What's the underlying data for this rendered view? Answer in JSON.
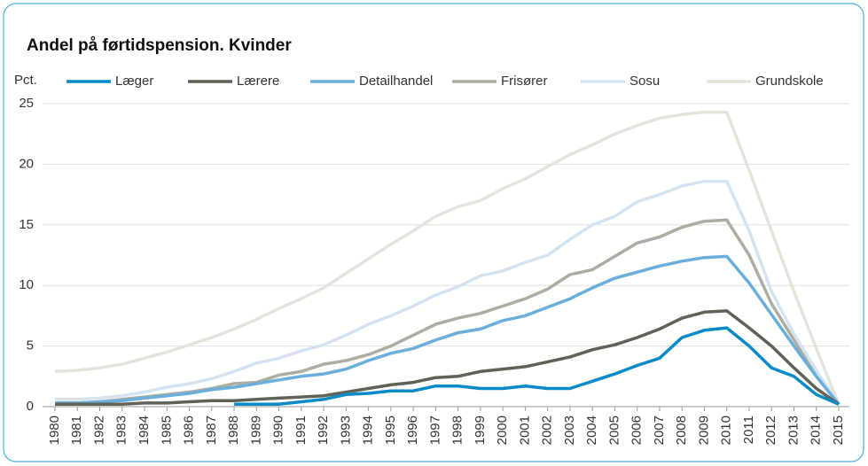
{
  "chart_data": {
    "type": "line",
    "title": "Andel på førtidspension. Kvinder",
    "y_label": "Pct.",
    "categories": [
      "1980",
      "1981",
      "1982",
      "1983",
      "1984",
      "1985",
      "1986",
      "1987",
      "1988",
      "1989",
      "1990",
      "1991",
      "1992",
      "1993",
      "1994",
      "1995",
      "1996",
      "1997",
      "1998",
      "1999",
      "2000",
      "2001",
      "2002",
      "2003",
      "2004",
      "2005",
      "2006",
      "2007",
      "2008",
      "2009",
      "2010",
      "2011",
      "2012",
      "2013",
      "2014",
      "2015"
    ],
    "ylim": [
      0,
      25
    ],
    "yticks": [
      0,
      5,
      10,
      15,
      20,
      25
    ],
    "grid": true,
    "series": [
      {
        "name": "Læger",
        "color": "#0a8ac6",
        "values": [
          null,
          null,
          null,
          null,
          null,
          null,
          null,
          null,
          0.2,
          0.2,
          0.2,
          0.4,
          0.6,
          1.0,
          1.1,
          1.3,
          1.3,
          1.7,
          1.7,
          1.5,
          1.5,
          1.7,
          1.5,
          1.5,
          2.1,
          2.7,
          3.4,
          4.0,
          5.7,
          6.3,
          6.5,
          5.0,
          3.2,
          2.5,
          1.0,
          0.2
        ]
      },
      {
        "name": "Lærere",
        "color": "#5f6357",
        "values": [
          0.2,
          0.2,
          0.2,
          0.2,
          0.3,
          0.3,
          0.4,
          0.5,
          0.5,
          0.6,
          0.7,
          0.8,
          0.9,
          1.2,
          1.5,
          1.8,
          2.0,
          2.4,
          2.5,
          2.9,
          3.1,
          3.3,
          3.7,
          4.1,
          4.7,
          5.1,
          5.7,
          6.4,
          7.3,
          7.8,
          7.9,
          6.5,
          5.0,
          3.2,
          1.5,
          0.2
        ]
      },
      {
        "name": "Detailhandel",
        "color": "#6aaedb",
        "values": [
          0.3,
          0.3,
          0.4,
          0.5,
          0.7,
          0.9,
          1.1,
          1.4,
          1.6,
          1.9,
          2.2,
          2.5,
          2.7,
          3.1,
          3.8,
          4.4,
          4.8,
          5.5,
          6.1,
          6.4,
          7.1,
          7.5,
          8.2,
          8.9,
          9.8,
          10.6,
          11.1,
          11.6,
          12.0,
          12.3,
          12.4,
          10.2,
          7.6,
          5.0,
          2.5,
          0.2
        ]
      },
      {
        "name": "Frisører",
        "color": "#aeada0",
        "values": [
          0.3,
          0.3,
          0.4,
          0.6,
          0.8,
          1.0,
          1.2,
          1.5,
          1.9,
          2.0,
          2.6,
          2.9,
          3.5,
          3.8,
          4.3,
          5.0,
          5.9,
          6.8,
          7.3,
          7.7,
          8.3,
          8.9,
          9.7,
          10.9,
          11.3,
          12.4,
          13.5,
          14.0,
          14.8,
          15.3,
          15.4,
          12.5,
          8.5,
          5.5,
          2.5,
          0.2
        ]
      },
      {
        "name": "Sosu",
        "color": "#d3e3f1",
        "values": [
          0.6,
          0.6,
          0.7,
          0.9,
          1.2,
          1.6,
          1.9,
          2.3,
          2.9,
          3.6,
          4.0,
          4.6,
          5.1,
          5.9,
          6.8,
          7.5,
          8.3,
          9.2,
          9.9,
          10.8,
          11.2,
          11.9,
          12.5,
          13.8,
          15.0,
          15.7,
          16.9,
          17.5,
          18.2,
          18.6,
          18.6,
          14.5,
          9.5,
          6.0,
          3.0,
          0.2
        ]
      },
      {
        "name": "Grundskole",
        "color": "#e4e4dc",
        "values": [
          2.9,
          3.0,
          3.2,
          3.5,
          4.0,
          4.5,
          5.1,
          5.7,
          6.4,
          7.2,
          8.1,
          8.9,
          9.8,
          11.0,
          12.2,
          13.4,
          14.5,
          15.7,
          16.5,
          17.0,
          18.0,
          18.8,
          19.8,
          20.8,
          21.6,
          22.5,
          23.2,
          23.8,
          24.1,
          24.3,
          24.3,
          19.5,
          14.5,
          9.5,
          4.8,
          0.2
        ]
      }
    ]
  }
}
